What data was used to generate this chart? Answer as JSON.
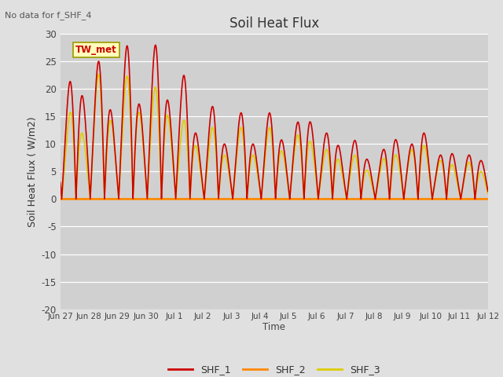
{
  "title": "Soil Heat Flux",
  "note": "No data for f_SHF_4",
  "ylabel": "Soil Heat Flux ( W/m2)",
  "xlabel": "Time",
  "legend_label": "TW_met",
  "ylim": [
    -20,
    30
  ],
  "fig_bg": "#e0e0e0",
  "plot_bg": "#d0d0d0",
  "line_colors": {
    "SHF_1": "#cc0000",
    "SHF_2": "#ff8800",
    "SHF_3": "#ddcc00"
  },
  "x_tick_labels": [
    "Jun 27",
    "Jun 28",
    "Jun 29",
    "Jun 30",
    "Jul 1",
    "Jul 2",
    "Jul 3",
    "Jul 4",
    "Jul 5",
    "Jul 6",
    "Jul 7",
    "Jul 8",
    "Jul 9",
    "Jul 10",
    "Jul 11",
    "Jul 12"
  ],
  "yticks": [
    -20,
    -15,
    -10,
    -5,
    0,
    5,
    10,
    15,
    20,
    25,
    30
  ],
  "peak_amps_shf1": [
    20,
    24,
    27,
    29.5,
    25,
    17.5,
    15.5,
    16,
    15,
    12,
    12,
    8,
    11,
    8,
    8,
    8
  ],
  "trough_amps_shf1": [
    15,
    20,
    15,
    18,
    18,
    10,
    10,
    10,
    11,
    15,
    8,
    7,
    12,
    12,
    7,
    7
  ],
  "peak_amps_shf3": [
    12,
    23,
    22,
    23,
    15,
    13,
    13,
    13,
    13,
    9,
    9,
    6,
    10,
    7,
    7,
    6
  ],
  "trough_amps_shf3": [
    12,
    12,
    15,
    16,
    15,
    8,
    8,
    8,
    9,
    11,
    6,
    5,
    9,
    10,
    5,
    5
  ]
}
